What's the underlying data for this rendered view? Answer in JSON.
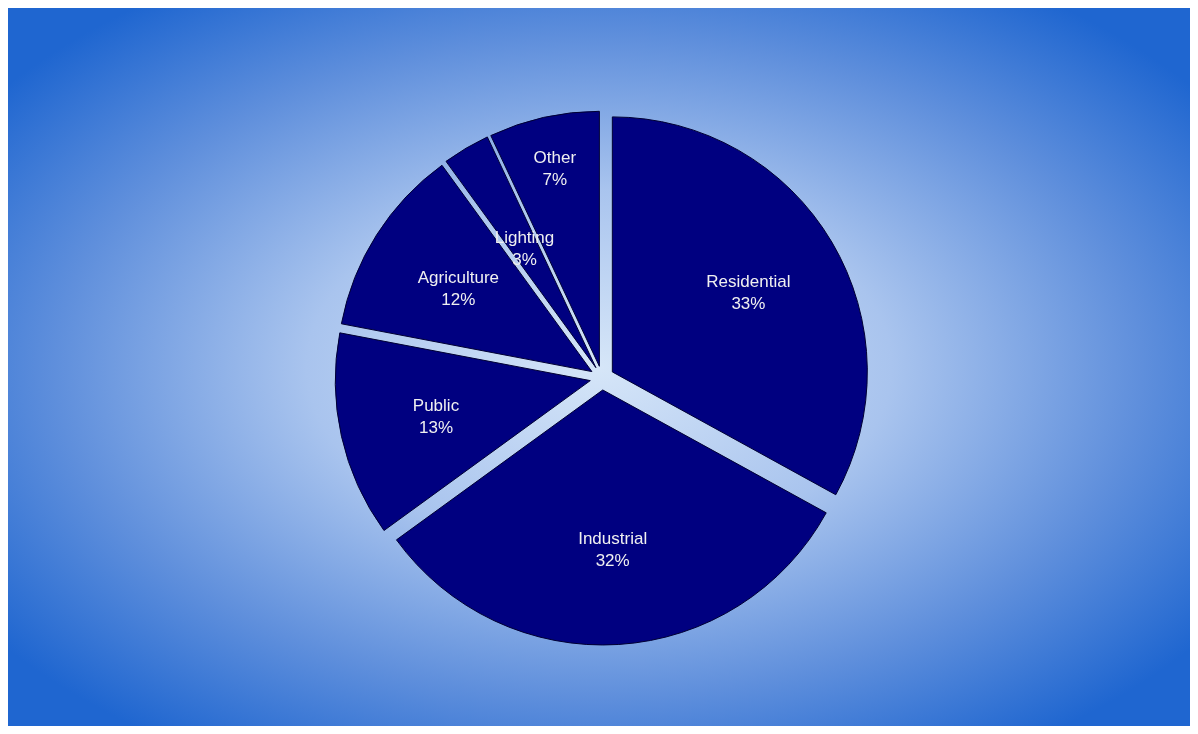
{
  "chart_data": {
    "type": "pie",
    "categories": [
      "Residential",
      "Industrial",
      "Public",
      "Agriculture",
      "Lighting",
      "Other"
    ],
    "values": [
      33,
      32,
      13,
      12,
      3,
      7
    ],
    "colors": [
      "#000080",
      "#000080",
      "#000080",
      "#000080",
      "#000080",
      "#000080"
    ],
    "value_labels": [
      "33%",
      "32%",
      "13%",
      "12%",
      "3%",
      "7%"
    ],
    "data_labels": true,
    "legend": false
  }
}
